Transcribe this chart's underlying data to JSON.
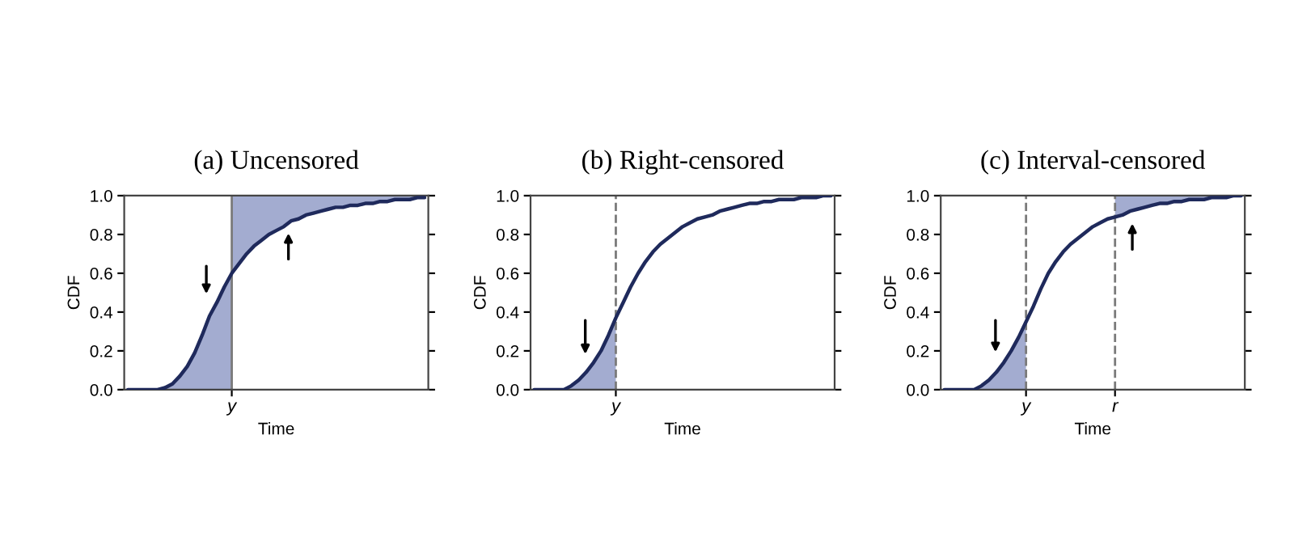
{
  "chart_data": [
    {
      "type": "line",
      "title": "(a) Uncensored",
      "xlabel": "Time",
      "ylabel": "CDF",
      "ylim": [
        0,
        1
      ],
      "categories": [
        null,
        null,
        null,
        null,
        null,
        null,
        null,
        null,
        null,
        null,
        null,
        null,
        null,
        null,
        "y",
        null,
        null,
        null,
        null,
        null,
        null,
        null,
        null,
        null,
        null,
        null,
        null,
        null,
        null,
        null,
        null,
        null,
        null,
        null,
        null,
        null,
        null,
        null,
        null,
        null,
        null
      ],
      "yticks": [
        {
          "value": 0,
          "label": "0.0"
        },
        {
          "value": 0.2,
          "label": "0.2"
        },
        {
          "value": 0.4,
          "label": "0.4"
        },
        {
          "value": 0.6,
          "label": "0.6"
        },
        {
          "value": 0.8,
          "label": "0.8"
        },
        {
          "value": 1,
          "label": "1.0"
        }
      ],
      "ref_lines": [
        {
          "axis": "x",
          "value": "y",
          "label": null,
          "color": "#7a7a7a",
          "line_style": "solid"
        }
      ],
      "series": [
        {
          "color": "#1f2a5c",
          "values": [
            0,
            0,
            0,
            0,
            0,
            0.01,
            0.03,
            0.07,
            0.12,
            0.19,
            0.28,
            0.38,
            0.45,
            0.53,
            0.6,
            0.65,
            0.7,
            0.74,
            0.77,
            0.8,
            0.82,
            0.84,
            0.87,
            0.88,
            0.9,
            0.91,
            0.92,
            0.93,
            0.94,
            0.94,
            0.95,
            0.95,
            0.96,
            0.96,
            0.97,
            0.97,
            0.98,
            0.98,
            0.98,
            0.99,
            0.99
          ],
          "lower": [
            0,
            0,
            0,
            0,
            0,
            0,
            0,
            0,
            0,
            0,
            0,
            0,
            0,
            0,
            0,
            0.65,
            0.7,
            0.74,
            0.77,
            0.8,
            0.82,
            0.84,
            0.87,
            0.88,
            0.9,
            0.91,
            0.92,
            0.93,
            0.94,
            0.94,
            0.95,
            0.95,
            0.96,
            0.96,
            0.97,
            0.97,
            0.98,
            0.98,
            0.98,
            0.99,
            0.99
          ],
          "upper": [
            0,
            0,
            0,
            0,
            0,
            0.01,
            0.03,
            0.07,
            0.12,
            0.19,
            0.28,
            0.38,
            0.45,
            0.53,
            0.6,
            1,
            1,
            1,
            1,
            1,
            1,
            1,
            1,
            1,
            1,
            1,
            1,
            1,
            1,
            1,
            1,
            1,
            1,
            1,
            1,
            1,
            1,
            1,
            1,
            1,
            1
          ]
        }
      ]
    },
    {
      "type": "line",
      "title": "(b) Right-censored",
      "xlabel": "Time",
      "ylabel": "CDF",
      "ylim": [
        0,
        1
      ],
      "categories": [
        null,
        null,
        null,
        null,
        null,
        null,
        null,
        null,
        null,
        null,
        null,
        "y",
        null,
        null,
        null,
        null,
        null,
        null,
        null,
        null,
        null,
        null,
        null,
        null,
        null,
        null,
        null,
        null,
        null,
        null,
        null,
        null,
        null,
        null,
        null,
        null,
        null,
        null,
        null,
        null,
        null
      ],
      "yticks": [
        {
          "value": 0,
          "label": "0.0"
        },
        {
          "value": 0.2,
          "label": "0.2"
        },
        {
          "value": 0.4,
          "label": "0.4"
        },
        {
          "value": 0.6,
          "label": "0.6"
        },
        {
          "value": 0.8,
          "label": "0.8"
        },
        {
          "value": 1,
          "label": "1.0"
        }
      ],
      "ref_lines": [
        {
          "axis": "x",
          "value": "y",
          "label": null,
          "color": "#7a7a7a",
          "line_style": "dashed"
        }
      ],
      "series": [
        {
          "color": "#1f2a5c",
          "values": [
            0,
            0,
            0,
            0,
            0,
            0.02,
            0.05,
            0.09,
            0.14,
            0.2,
            0.28,
            0.37,
            0.45,
            0.53,
            0.6,
            0.66,
            0.71,
            0.75,
            0.78,
            0.81,
            0.84,
            0.86,
            0.88,
            0.89,
            0.9,
            0.92,
            0.93,
            0.94,
            0.95,
            0.96,
            0.96,
            0.97,
            0.97,
            0.98,
            0.98,
            0.98,
            0.99,
            0.99,
            0.99,
            1,
            1
          ],
          "lower": [
            0,
            0,
            0,
            0,
            0,
            0,
            0,
            0,
            0,
            0,
            0,
            0,
            null,
            null,
            null,
            null,
            null,
            null,
            null,
            null,
            null,
            null,
            null,
            null,
            null,
            null,
            null,
            null,
            null,
            null,
            null,
            null,
            null,
            null,
            null,
            null,
            null,
            null,
            null,
            null,
            null
          ],
          "upper": [
            0,
            0,
            0,
            0,
            0,
            0.02,
            0.05,
            0.09,
            0.14,
            0.2,
            0.28,
            0.37,
            null,
            null,
            null,
            null,
            null,
            null,
            null,
            null,
            null,
            null,
            null,
            null,
            null,
            null,
            null,
            null,
            null,
            null,
            null,
            null,
            null,
            null,
            null,
            null,
            null,
            null,
            null,
            null,
            null
          ]
        }
      ]
    },
    {
      "type": "line",
      "title": "(c) Interval-censored",
      "xlabel": "Time",
      "ylabel": "CDF",
      "ylim": [
        0,
        1
      ],
      "categories": [
        null,
        null,
        null,
        null,
        null,
        null,
        null,
        null,
        null,
        null,
        null,
        "y",
        null,
        null,
        null,
        null,
        null,
        null,
        null,
        null,
        null,
        null,
        null,
        "r",
        null,
        null,
        null,
        null,
        null,
        null,
        null,
        null,
        null,
        null,
        null,
        null,
        null,
        null,
        null,
        null,
        null
      ],
      "yticks": [
        {
          "value": 0,
          "label": "0.0"
        },
        {
          "value": 0.2,
          "label": "0.2"
        },
        {
          "value": 0.4,
          "label": "0.4"
        },
        {
          "value": 0.6,
          "label": "0.6"
        },
        {
          "value": 0.8,
          "label": "0.8"
        },
        {
          "value": 1,
          "label": "1.0"
        }
      ],
      "ref_lines": [
        {
          "axis": "x",
          "value": "y",
          "label": null,
          "color": "#7a7a7a",
          "line_style": "dashed"
        },
        {
          "axis": "x",
          "value": "r",
          "label": null,
          "color": "#7a7a7a",
          "line_style": "dashed"
        }
      ],
      "series": [
        {
          "color": "#1f2a5c",
          "values": [
            0,
            0,
            0,
            0,
            0,
            0.02,
            0.05,
            0.09,
            0.14,
            0.2,
            0.27,
            0.35,
            0.43,
            0.52,
            0.6,
            0.66,
            0.71,
            0.75,
            0.78,
            0.81,
            0.84,
            0.86,
            0.88,
            0.89,
            0.9,
            0.92,
            0.93,
            0.94,
            0.95,
            0.96,
            0.96,
            0.97,
            0.97,
            0.98,
            0.98,
            0.98,
            0.99,
            0.99,
            0.99,
            1,
            1
          ],
          "lower": [
            0,
            0,
            0,
            0,
            0,
            0,
            0,
            0,
            0,
            0,
            0,
            0,
            null,
            null,
            null,
            null,
            null,
            null,
            null,
            null,
            null,
            null,
            null,
            0.89,
            0.9,
            0.92,
            0.93,
            0.94,
            0.95,
            0.96,
            0.96,
            0.97,
            0.97,
            0.98,
            0.98,
            0.98,
            0.99,
            0.99,
            0.99,
            1,
            1
          ],
          "upper": [
            0,
            0,
            0,
            0,
            0,
            0.02,
            0.05,
            0.09,
            0.14,
            0.2,
            0.27,
            0.35,
            null,
            null,
            null,
            null,
            null,
            null,
            null,
            null,
            null,
            null,
            null,
            1,
            1,
            1,
            1,
            1,
            1,
            1,
            1,
            1,
            1,
            1,
            1,
            1,
            1,
            1,
            1,
            1,
            1
          ]
        }
      ]
    }
  ]
}
